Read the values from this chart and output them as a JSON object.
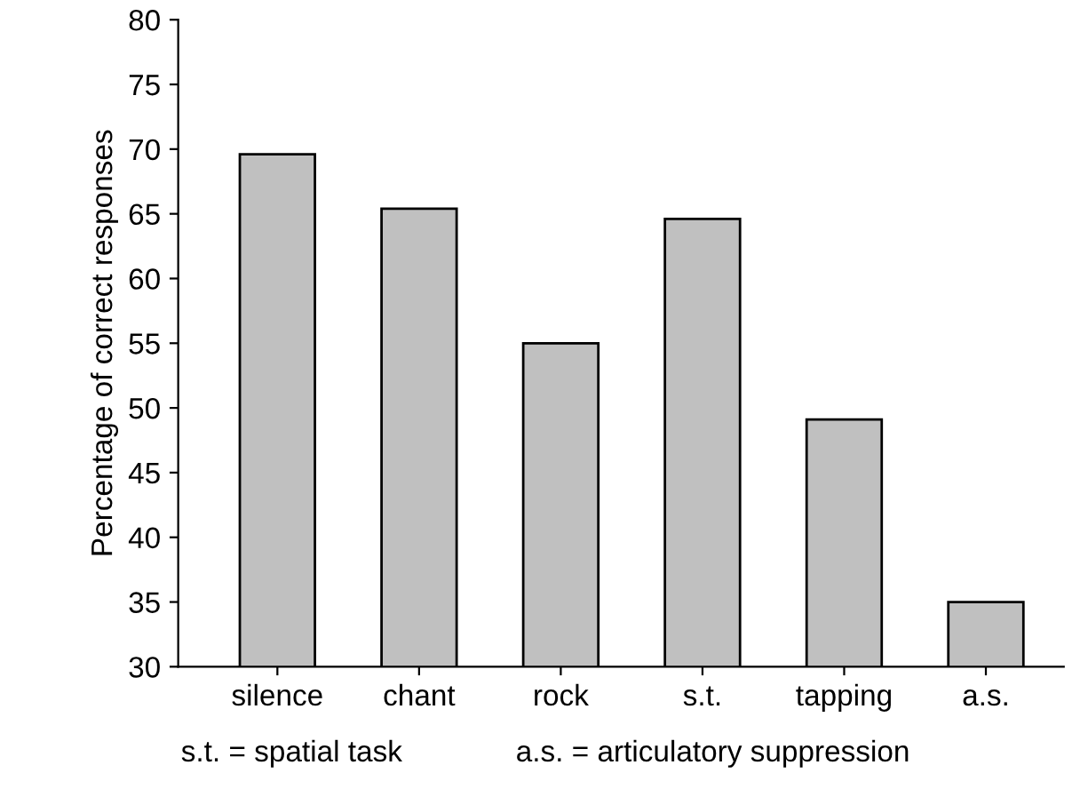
{
  "chart_data": {
    "type": "bar",
    "ylabel": "Percentage of correct responses",
    "categories": [
      "silence",
      "chant",
      "rock",
      "s.t.",
      "tapping",
      "a.s."
    ],
    "values": [
      69.6,
      65.4,
      55,
      64.6,
      49.1,
      35
    ],
    "color": "#c0c0c0",
    "ylim": [
      30,
      80
    ],
    "yticks": [
      30,
      35,
      40,
      45,
      50,
      55,
      60,
      65,
      70,
      75,
      80
    ],
    "grid": false,
    "annotations": [
      "s.t. = spatial task",
      "a.s. = articulatory suppression"
    ]
  }
}
